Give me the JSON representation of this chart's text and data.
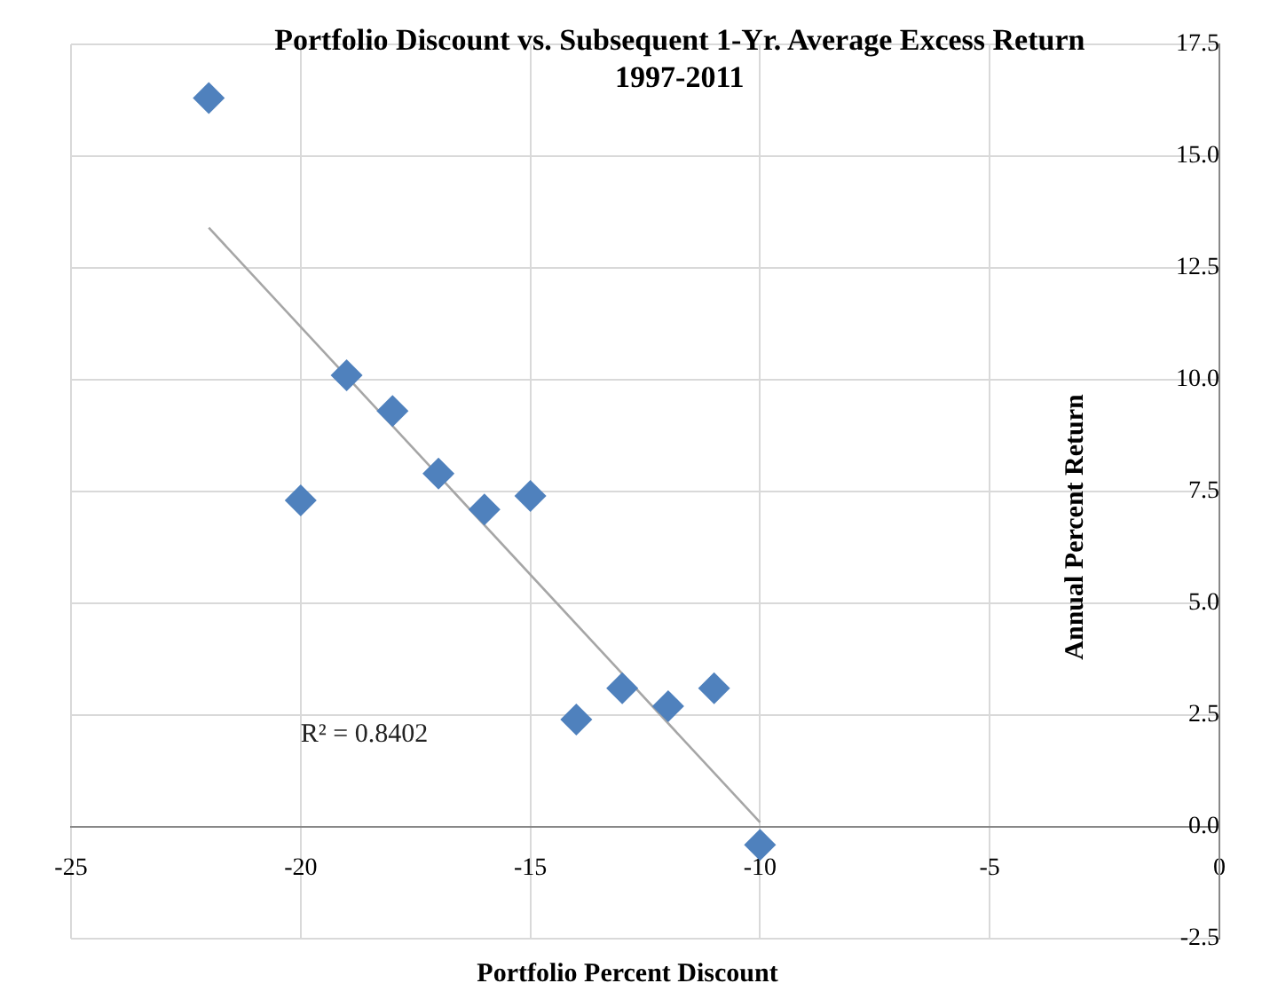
{
  "chart_data": {
    "type": "scatter",
    "title": "Portfolio Discount vs. Subsequent 1-Yr. Average Excess Return 1997-2011",
    "xlabel": "Portfolio Percent Discount",
    "ylabel": "Annual Percent Return",
    "series": [
      {
        "type": "scatter",
        "color": "#4f81bd",
        "marker": "diamond",
        "x": [
          -22,
          -20,
          -19,
          -18,
          -17,
          -16,
          -15,
          -14,
          -13,
          -12,
          -11,
          -10
        ],
        "values": [
          16.3,
          7.3,
          10.1,
          9.3,
          7.9,
          7.1,
          7.4,
          2.4,
          3.1,
          2.7,
          3.1,
          -0.4
        ]
      },
      {
        "type": "line",
        "color": "#a6a6a6",
        "marker": "none",
        "x": [
          -22,
          -10
        ],
        "values": [
          13.4,
          0.1
        ]
      }
    ],
    "xlim": [
      -25,
      0
    ],
    "xticks": [
      -25,
      -20,
      -15,
      -10,
      -5,
      0
    ],
    "ylim": [
      -2.5,
      17.5
    ],
    "yticks": [
      -2.5,
      {
        "value": 0,
        "label": "0.0"
      },
      2.5,
      {
        "value": 5,
        "label": "5.0"
      },
      7.5,
      {
        "value": 10,
        "label": "10.0"
      },
      12.5,
      {
        "value": 15,
        "label": "15.0"
      },
      17.5
    ],
    "grid": true,
    "legend": false,
    "annotations": [
      "R² = 0.8402"
    ]
  }
}
